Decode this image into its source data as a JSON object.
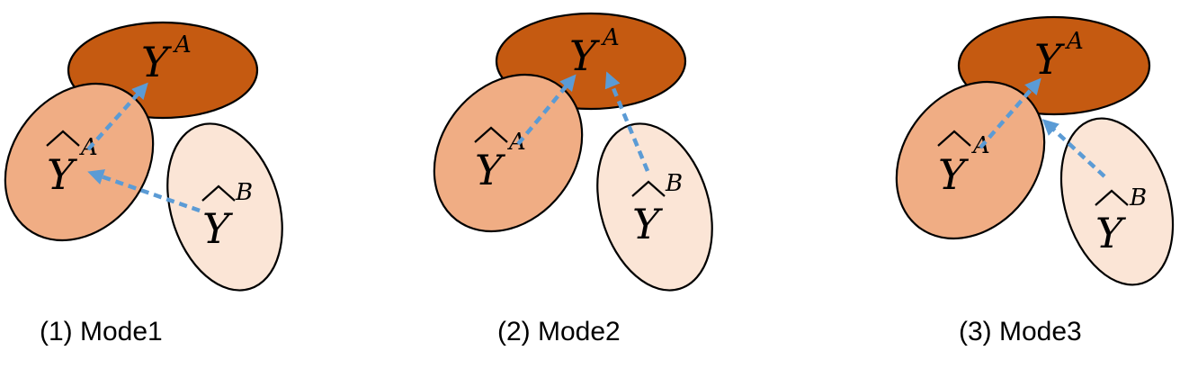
{
  "panels": [
    {
      "caption": "(1) Mode1",
      "label_a": {
        "base": "Y",
        "sup": "A"
      },
      "label_ahat": {
        "base": "Y",
        "sup": "A"
      },
      "label_bhat": {
        "base": "Y",
        "sup": "B"
      }
    },
    {
      "caption": "(2) Mode2",
      "label_a": {
        "base": "Y",
        "sup": "A"
      },
      "label_ahat": {
        "base": "Y",
        "sup": "A"
      },
      "label_bhat": {
        "base": "Y",
        "sup": "B"
      }
    },
    {
      "caption": "(3) Mode3",
      "label_a": {
        "base": "Y",
        "sup": "A"
      },
      "label_ahat": {
        "base": "Y",
        "sup": "A"
      },
      "label_bhat": {
        "base": "Y",
        "sup": "B"
      }
    }
  ],
  "colors": {
    "set_a": "#c55a11",
    "set_ahat": "#f0ad84",
    "set_bhat": "#fbe5d6",
    "arrow": "#5b9bd5"
  }
}
